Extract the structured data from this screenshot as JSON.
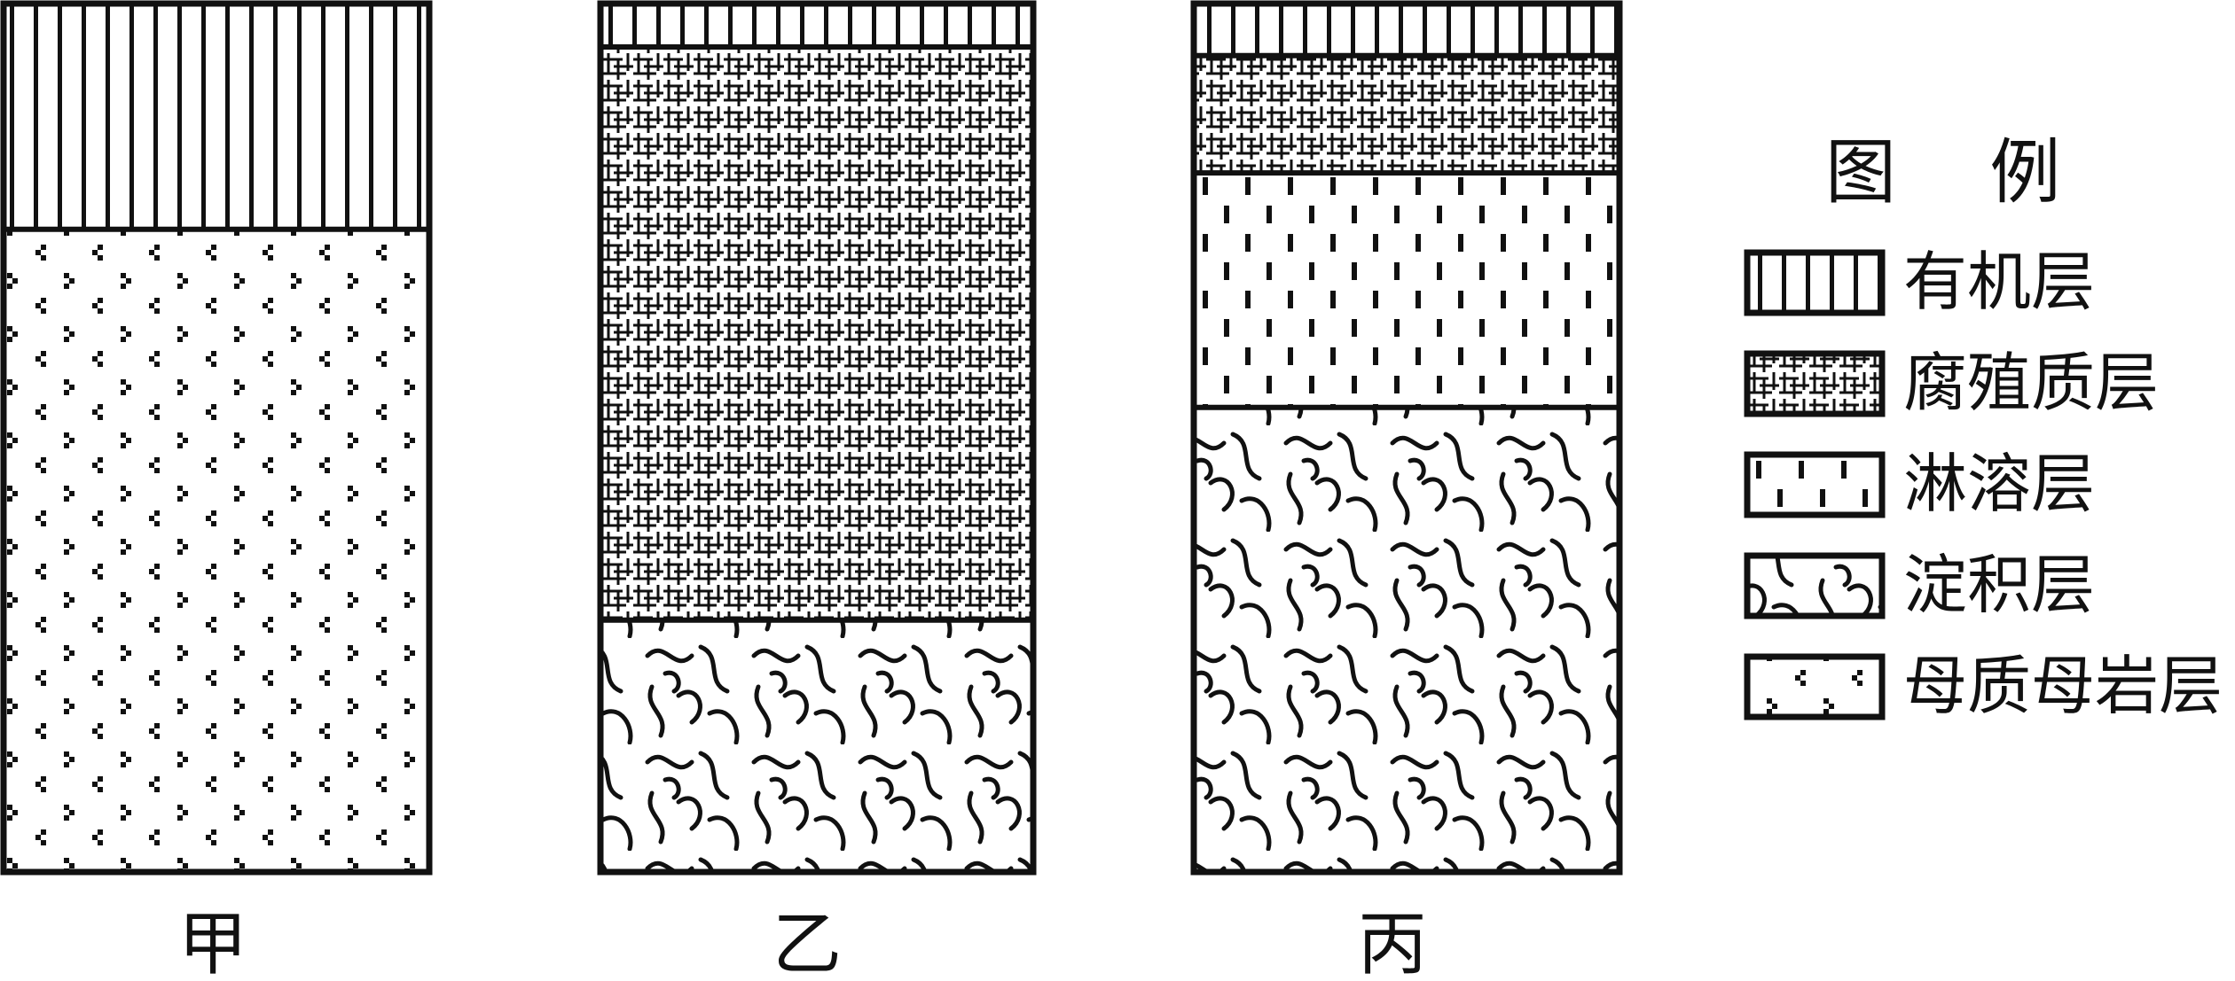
{
  "columns": [
    {
      "id": "jia",
      "label": "甲",
      "layers": [
        {
          "type": "organic",
          "share": 0.26
        },
        {
          "type": "parent",
          "share": 0.74
        }
      ]
    },
    {
      "id": "yi",
      "label": "乙",
      "layers": [
        {
          "type": "organic",
          "share": 0.05
        },
        {
          "type": "humus",
          "share": 0.66
        },
        {
          "type": "deposition",
          "share": 0.29
        }
      ]
    },
    {
      "id": "bing",
      "label": "丙",
      "layers": [
        {
          "type": "organic",
          "share": 0.06
        },
        {
          "type": "humus",
          "share": 0.135
        },
        {
          "type": "leaching",
          "share": 0.27
        },
        {
          "type": "deposition",
          "share": 0.535
        }
      ]
    }
  ],
  "legend": {
    "title": "图 例",
    "items": [
      {
        "type": "organic",
        "label": "有机层"
      },
      {
        "type": "humus",
        "label": "腐殖质层"
      },
      {
        "type": "leaching",
        "label": "淋溶层"
      },
      {
        "type": "deposition",
        "label": "淀积层"
      },
      {
        "type": "parent",
        "label": "母质母岩层"
      }
    ]
  },
  "colors": {
    "ink": "#111111",
    "background": "#ffffff"
  }
}
